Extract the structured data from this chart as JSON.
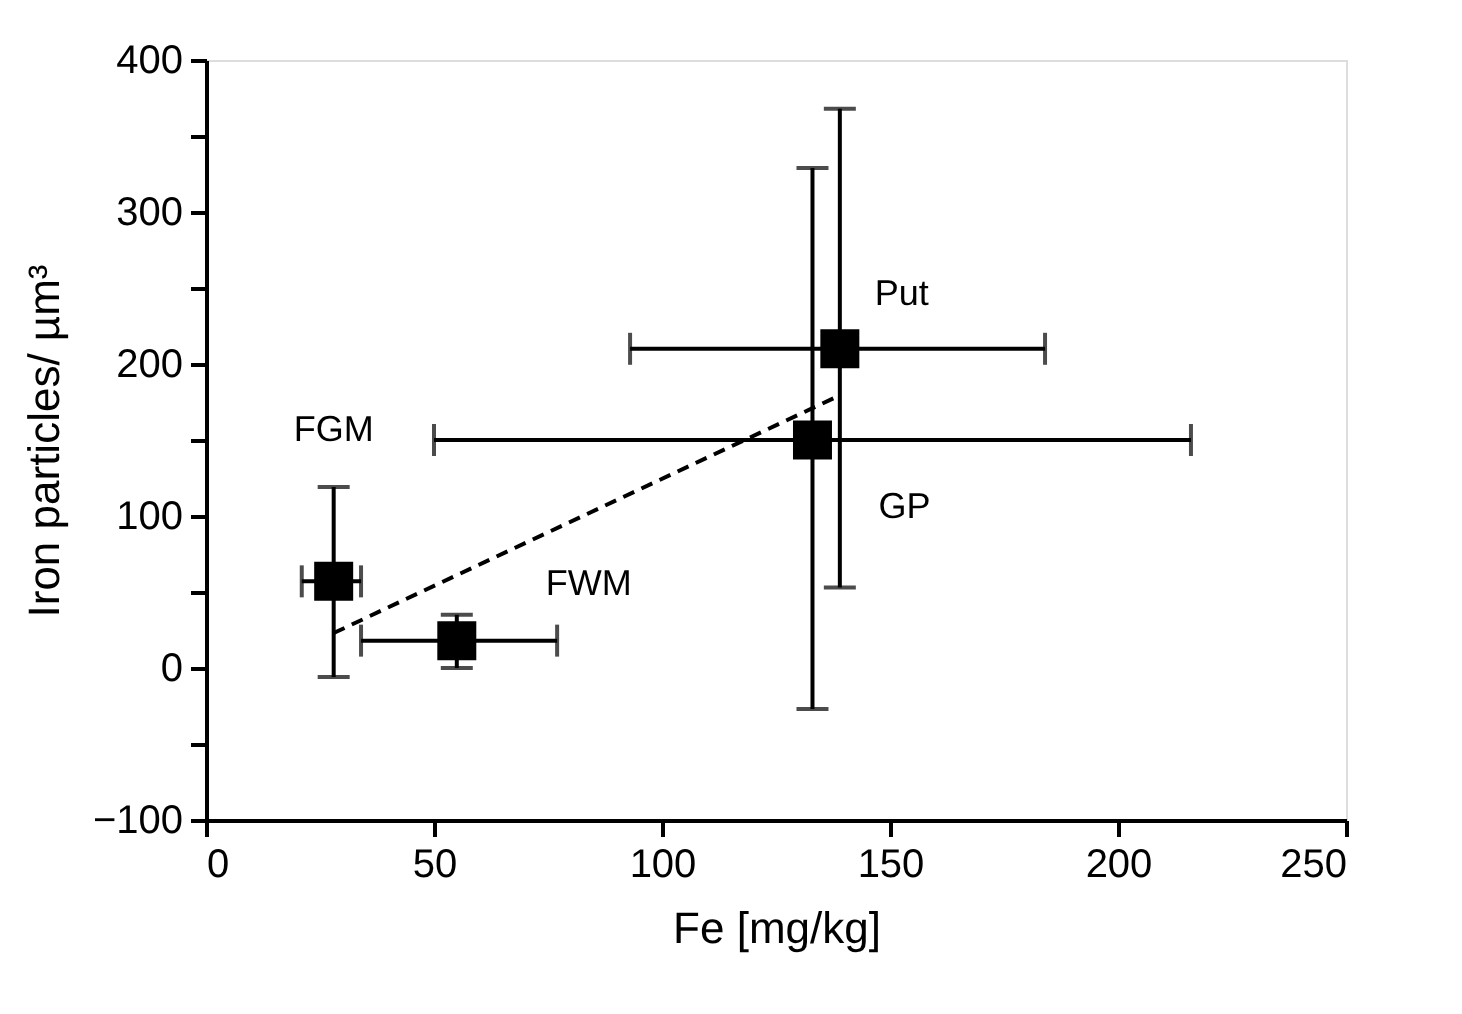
{
  "chart_data": {
    "type": "scatter",
    "xlabel": "Fe [mg/kg]",
    "ylabel": "Iron particles/ µm³",
    "xlim": [
      0,
      250
    ],
    "xticks": [
      0,
      50,
      100,
      150,
      200,
      250
    ],
    "ylim": [
      -100,
      400
    ],
    "yticks": [
      -100,
      {
        "value": -50,
        "label": null
      },
      0,
      {
        "value": 50,
        "label": null
      },
      100,
      {
        "value": 150,
        "label": null
      },
      200,
      {
        "value": 250,
        "label": null
      },
      300,
      {
        "value": 350,
        "label": null
      },
      400
    ],
    "grid": false,
    "series": [
      {
        "color": "#000000",
        "marker": "square",
        "x": [
          28,
          55,
          133,
          139
        ],
        "values": [
          57,
          18,
          150,
          210
        ],
        "errors": [
          [
            -6,
            119
          ],
          [
            0,
            35
          ],
          [
            -27,
            329
          ],
          [
            53,
            368
          ]
        ],
        "xerrors": [
          [
            21,
            34
          ],
          [
            34,
            77
          ],
          [
            50,
            216
          ],
          [
            93,
            184
          ]
        ]
      },
      {
        "type": "line",
        "color": "#000000",
        "line_style": "dashed",
        "x": [
          28,
          138
        ],
        "values": [
          23,
          178
        ]
      }
    ],
    "annotations": [
      "FGM",
      "FWM",
      "GP",
      "Put"
    ]
  }
}
